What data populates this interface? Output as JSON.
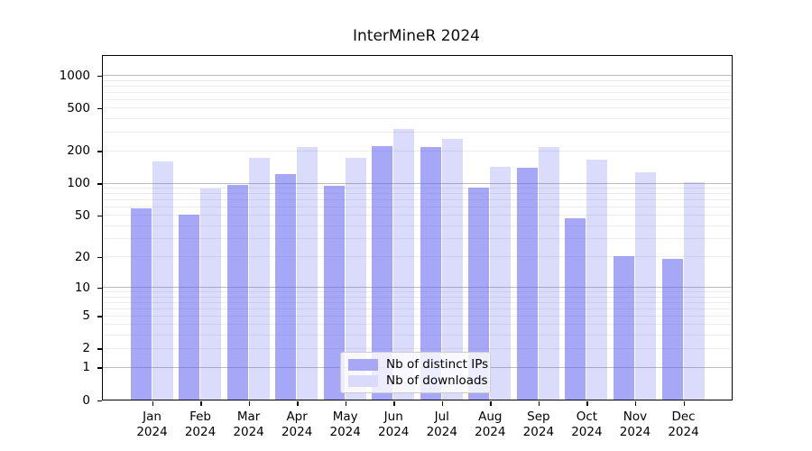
{
  "title": "InterMineR 2024",
  "legend": {
    "items": [
      {
        "label": "Nb of distinct IPs",
        "swatch_color": "#a7a7f5"
      },
      {
        "label": "Nb of downloads",
        "swatch_color": "#dadafa"
      }
    ]
  },
  "colors": {
    "bar_distinct_ips": "rgba(95,95,242,0.55)",
    "bar_downloads": "rgba(90,90,235,0.22)",
    "grid_major": "#bcbcbc",
    "grid_minor": "#ececec",
    "axis": "#000000"
  },
  "chart_data": {
    "type": "bar",
    "title": "InterMineR 2024",
    "categories": [
      "Jan",
      "Feb",
      "Mar",
      "Apr",
      "May",
      "Jun",
      "Jul",
      "Aug",
      "Sep",
      "Oct",
      "Nov",
      "Dec"
    ],
    "category_year": "2024",
    "series": [
      {
        "name": "Nb of distinct IPs",
        "swatch": "#a7a7f5",
        "fill": "rgba(95,95,242,0.55)",
        "values": [
          57,
          50,
          95,
          120,
          94,
          218,
          217,
          90,
          139,
          46,
          20,
          19
        ]
      },
      {
        "name": "Nb of downloads",
        "swatch": "#dadafa",
        "fill": "rgba(90,90,235,0.22)",
        "values": [
          158,
          89,
          169,
          213,
          172,
          314,
          256,
          140,
          217,
          163,
          124,
          102
        ]
      }
    ],
    "xlabel": "",
    "ylabel": "",
    "y_scale": "log1p",
    "y_ticks": [
      0,
      1,
      2,
      5,
      10,
      20,
      50,
      100,
      200,
      500,
      1000
    ],
    "y_major_gridlines": [
      1,
      10,
      100,
      1000
    ],
    "ylim": [
      0,
      1500
    ],
    "grid": true,
    "legend_position": "lower center"
  }
}
